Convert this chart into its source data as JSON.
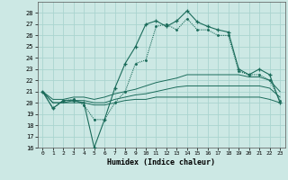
{
  "xlabel": "Humidex (Indice chaleur)",
  "bg_color": "#cce8e4",
  "grid_color": "#aad4cf",
  "line_color": "#1a6b5a",
  "xlim": [
    -0.5,
    23.5
  ],
  "ylim": [
    16,
    29
  ],
  "yticks": [
    16,
    17,
    18,
    19,
    20,
    21,
    22,
    23,
    24,
    25,
    26,
    27,
    28
  ],
  "xticks": [
    0,
    1,
    2,
    3,
    4,
    5,
    6,
    7,
    8,
    9,
    10,
    11,
    12,
    13,
    14,
    15,
    16,
    17,
    18,
    19,
    20,
    21,
    22,
    23
  ],
  "series_main": [
    21.0,
    19.5,
    20.2,
    20.2,
    20.0,
    16.0,
    18.5,
    21.3,
    23.5,
    25.0,
    27.0,
    27.3,
    26.8,
    27.3,
    28.2,
    27.2,
    26.8,
    26.5,
    26.3,
    23.0,
    22.5,
    23.0,
    22.5,
    20.0
  ],
  "series_dot": [
    21.0,
    19.5,
    20.2,
    20.3,
    19.8,
    18.5,
    18.5,
    20.0,
    21.0,
    23.5,
    23.8,
    26.8,
    27.0,
    26.5,
    27.5,
    26.5,
    26.5,
    26.0,
    26.0,
    22.8,
    22.5,
    22.5,
    22.0,
    20.2
  ],
  "line_flat1": [
    21.0,
    20.3,
    20.3,
    20.5,
    20.5,
    20.3,
    20.5,
    20.8,
    21.0,
    21.2,
    21.5,
    21.8,
    22.0,
    22.2,
    22.5,
    22.5,
    22.5,
    22.5,
    22.5,
    22.5,
    22.3,
    22.3,
    22.0,
    21.0
  ],
  "line_flat2": [
    21.0,
    20.0,
    20.0,
    20.2,
    20.2,
    20.0,
    20.0,
    20.3,
    20.5,
    20.7,
    20.8,
    21.0,
    21.2,
    21.4,
    21.5,
    21.5,
    21.5,
    21.5,
    21.5,
    21.5,
    21.5,
    21.5,
    21.3,
    20.5
  ],
  "line_flat3": [
    21.0,
    20.0,
    20.0,
    20.0,
    20.0,
    19.8,
    19.8,
    20.0,
    20.2,
    20.3,
    20.3,
    20.5,
    20.5,
    20.5,
    20.5,
    20.5,
    20.5,
    20.5,
    20.5,
    20.5,
    20.5,
    20.5,
    20.3,
    20.0
  ]
}
